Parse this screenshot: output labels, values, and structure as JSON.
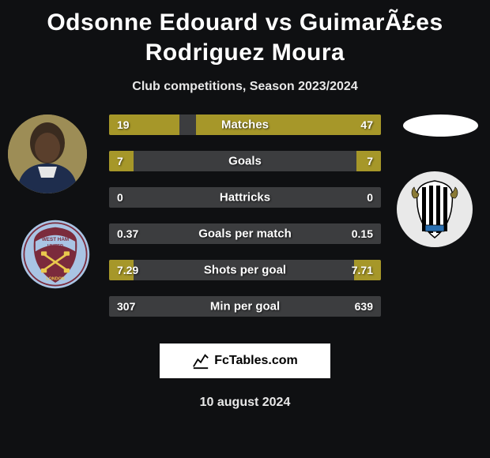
{
  "title": "Odsonne Edouard vs GuimarÃ£es Rodriguez Moura",
  "subtitle": "Club competitions, Season 2023/2024",
  "date": "10 august 2024",
  "attribution": "FcTables.com",
  "bar": {
    "height": 26,
    "gap": 20,
    "track_color": "#3c3d3f",
    "fill_color": "#a69729",
    "label_fontsize": 15,
    "value_fontsize": 14
  },
  "background_color": "#0f1012",
  "rows": [
    {
      "label": "Matches",
      "left_val": "19",
      "right_val": "47",
      "left_pct": 26,
      "right_pct": 68
    },
    {
      "label": "Goals",
      "left_val": "7",
      "right_val": "7",
      "left_pct": 9,
      "right_pct": 9
    },
    {
      "label": "Hattricks",
      "left_val": "0",
      "right_val": "0",
      "left_pct": 0,
      "right_pct": 0
    },
    {
      "label": "Goals per match",
      "left_val": "0.37",
      "right_val": "0.15",
      "left_pct": 0,
      "right_pct": 0
    },
    {
      "label": "Shots per goal",
      "left_val": "7.29",
      "right_val": "7.71",
      "left_pct": 9,
      "right_pct": 10
    },
    {
      "label": "Min per goal",
      "left_val": "307",
      "right_val": "639",
      "left_pct": 0,
      "right_pct": 0
    }
  ],
  "crest_left": {
    "ring_color": "#a9c4e4",
    "shield_color": "#7b2b3c",
    "band_color": "#a9c4e4",
    "hammer_color": "#e9c94d",
    "text_top": "WEST HAM",
    "text_mid": "UNITED",
    "text_bottom": "LONDON"
  },
  "crest_right": {
    "outer_color": "#e9e9e9",
    "shield_color": "#ffffff",
    "stripe_color": "#000000"
  }
}
